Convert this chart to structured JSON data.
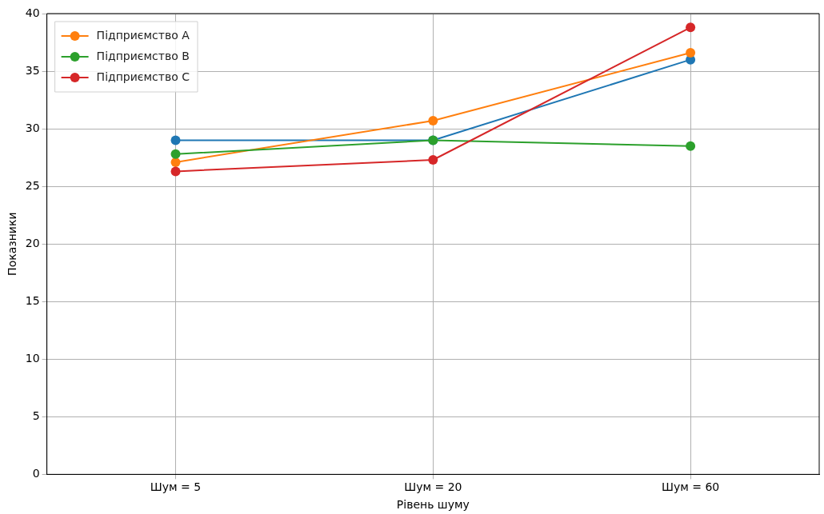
{
  "chart_data": {
    "type": "line",
    "xlabel": "Рівень шуму",
    "ylabel": "Показники",
    "categories": [
      "Шум = 5",
      "Шум = 20",
      "Шум = 60"
    ],
    "series": [
      {
        "color": "#1f77b4",
        "values": [
          29,
          29,
          36
        ]
      },
      {
        "name": "Підприємство A",
        "color": "#ff7f0e",
        "values": [
          27.1,
          30.7,
          36.6
        ]
      },
      {
        "name": "Підприємство B",
        "color": "#2ca02c",
        "values": [
          27.8,
          29,
          28.5
        ]
      },
      {
        "name": "Підприємство C",
        "color": "#d62728",
        "values": [
          26.3,
          27.3,
          38.8
        ]
      }
    ],
    "ylim": [
      0,
      40
    ],
    "yticks": [
      0,
      5,
      10,
      15,
      20,
      25,
      30,
      35,
      40
    ],
    "grid": true,
    "legend": "top left",
    "marker": "circle",
    "line_style": "solid"
  }
}
